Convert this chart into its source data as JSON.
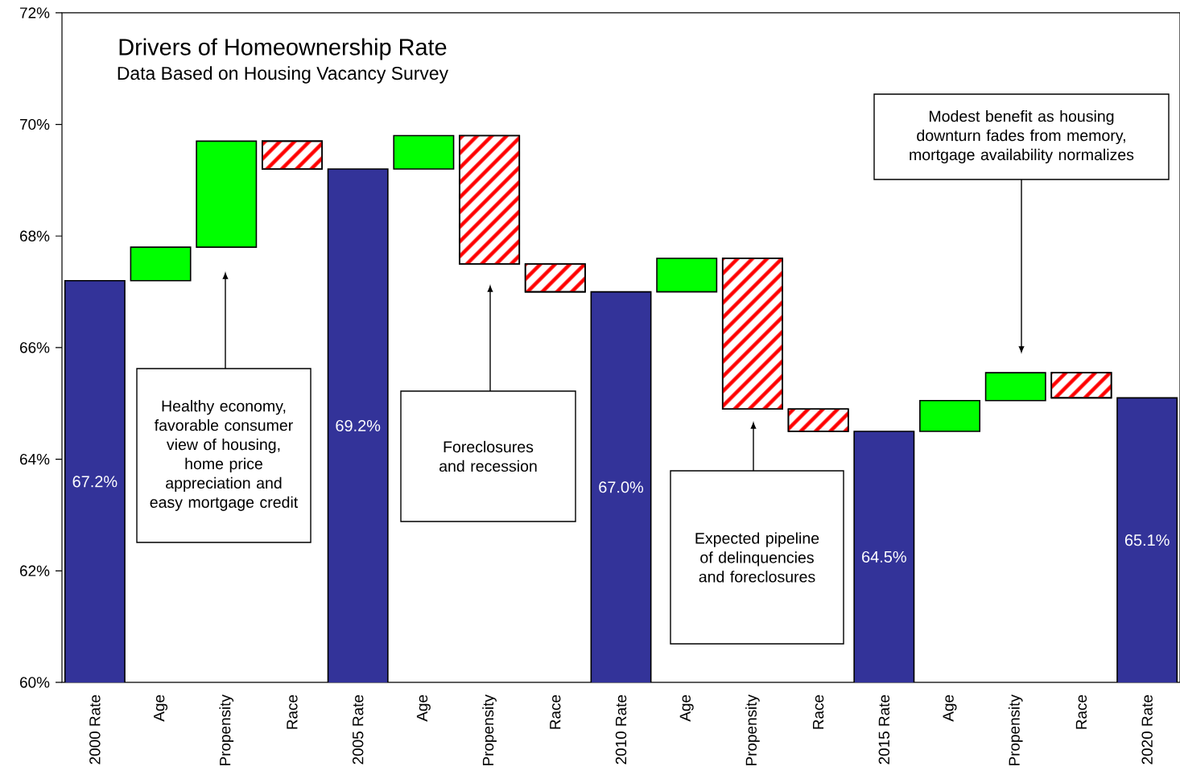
{
  "chart_data": {
    "type": "bar",
    "title": "Drivers of Homeownership Rate",
    "subtitle": "Data Based on Housing Vacancy Survey",
    "categories": [
      "2000 Rate",
      "Age",
      "Propensity",
      "Race",
      "2005 Rate",
      "Age",
      "Propensity",
      "Race",
      "2010 Rate",
      "Age",
      "Propensity",
      "Race",
      "2015 Rate",
      "Age",
      "Propensity",
      "Race",
      "2020 Rate"
    ],
    "values": [
      67.2,
      0.6,
      1.9,
      -0.5,
      69.2,
      0.6,
      -2.3,
      -0.5,
      67.0,
      0.6,
      -2.7,
      -0.4,
      64.5,
      0.55,
      0.5,
      -0.45,
      65.1
    ],
    "base": [
      null,
      67.2,
      67.8,
      69.7,
      null,
      69.2,
      69.8,
      67.5,
      null,
      67.0,
      67.6,
      64.9,
      null,
      64.5,
      65.05,
      65.55,
      null
    ],
    "colors": [
      "#333399",
      "#00ff00",
      "#00ff00",
      "#ff0000",
      "#333399",
      "#00ff00",
      "#ff0000",
      "#ff0000",
      "#333399",
      "#00ff00",
      "#ff0000",
      "#ff0000",
      "#333399",
      "#00ff00",
      "#00ff00",
      "#ff0000",
      "#333399"
    ],
    "value_labels": [
      "67.2%",
      null,
      null,
      null,
      "69.2%",
      null,
      null,
      null,
      "67.0%",
      null,
      null,
      null,
      "64.5%",
      null,
      null,
      null,
      "65.1%"
    ],
    "ylim": [
      60,
      72
    ],
    "yticks": [
      {
        "value": 60,
        "label": "60%"
      },
      {
        "value": 62,
        "label": "62%"
      },
      {
        "value": 64,
        "label": "64%"
      },
      {
        "value": 66,
        "label": "66%"
      },
      {
        "value": 68,
        "label": "68%"
      },
      {
        "value": 70,
        "label": "70%"
      },
      {
        "value": 72,
        "label": "72%"
      }
    ],
    "annotations": [
      "Healthy economy, favorable consumer view of housing, home price appreciation and easy mortgage credit",
      "Foreclosures and recession",
      "Expected pipeline of delinquencies and foreclosures",
      "Modest benefit as housing downturn fades from memory, mortgage availability normalizes"
    ]
  }
}
